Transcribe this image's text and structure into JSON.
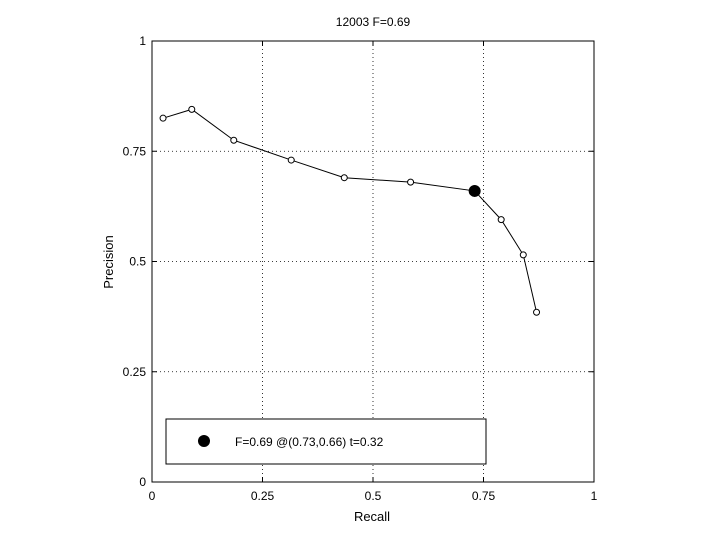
{
  "chart_data": {
    "type": "line",
    "title": "12003 F=0.69",
    "xlabel": "Recall",
    "ylabel": "Precision",
    "xlim": [
      0,
      1
    ],
    "ylim": [
      0,
      1
    ],
    "xticks": [
      0,
      0.25,
      0.5,
      0.75,
      1
    ],
    "yticks": [
      0,
      0.25,
      0.5,
      0.75,
      1
    ],
    "xtick_labels": [
      "0",
      "0.25",
      "0.5",
      "0.75",
      "1"
    ],
    "ytick_labels": [
      "0",
      "0.25",
      "0.5",
      "0.75",
      "1"
    ],
    "grid": true,
    "series": [
      {
        "x": [
          0.025,
          0.09,
          0.185,
          0.315,
          0.435,
          0.585,
          0.73,
          0.79,
          0.84,
          0.87
        ],
        "y": [
          0.825,
          0.845,
          0.775,
          0.73,
          0.69,
          0.68,
          0.66,
          0.595,
          0.515,
          0.385
        ]
      }
    ],
    "highlight_point": {
      "x": 0.73,
      "y": 0.66
    },
    "legend": {
      "position": "bottom-left",
      "entry": "F=0.69 @(0.73,0.66) t=0.32"
    }
  }
}
